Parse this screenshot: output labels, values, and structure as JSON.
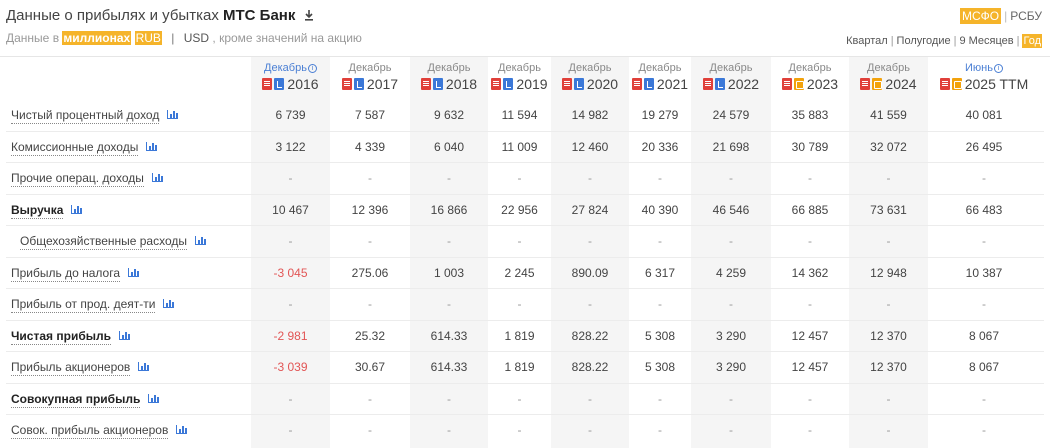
{
  "header": {
    "title_prefix": "Данные о прибылях и убытках",
    "bank_name": "МТС Банк",
    "download_icon": "download-icon"
  },
  "units": {
    "prefix": "Данные в",
    "scale": "миллионах",
    "currency_rub": "RUB",
    "currency_usd": "USD",
    "suffix": ", кроме значений на акцию"
  },
  "standards": {
    "ifrs": "МСФО",
    "ras": "РСБУ",
    "selected": "МСФО"
  },
  "periods": {
    "quarter": "Квартал",
    "half": "Полугодие",
    "nine_months": "9 Месяцев",
    "year": "Год",
    "selected": "Год"
  },
  "columns": [
    {
      "month": "Декабрь",
      "year": "2016",
      "info": true,
      "report": "xls"
    },
    {
      "month": "Декабрь",
      "year": "2017",
      "info": false,
      "report": "xls"
    },
    {
      "month": "Декабрь",
      "year": "2018",
      "info": false,
      "report": "xls"
    },
    {
      "month": "Декабрь",
      "year": "2019",
      "info": false,
      "report": "xls"
    },
    {
      "month": "Декабрь",
      "year": "2020",
      "info": false,
      "report": "xls"
    },
    {
      "month": "Декабрь",
      "year": "2021",
      "info": false,
      "report": "xls"
    },
    {
      "month": "Декабрь",
      "year": "2022",
      "info": false,
      "report": "xls"
    },
    {
      "month": "Декабрь",
      "year": "2023",
      "info": false,
      "report": "doc"
    },
    {
      "month": "Декабрь",
      "year": "2024",
      "info": false,
      "report": "doc"
    },
    {
      "month": "Июнь",
      "year": "2025 TTM",
      "info": true,
      "report": "doc"
    }
  ],
  "rows": [
    {
      "label": "Чистый процентный доход",
      "bold": false,
      "indent": false,
      "values": [
        "6 739",
        "7 587",
        "9 632",
        "11 594",
        "14 982",
        "19 279",
        "24 579",
        "35 883",
        "41 559",
        "40 081"
      ]
    },
    {
      "label": "Комиссионные доходы",
      "bold": false,
      "indent": false,
      "values": [
        "3 122",
        "4 339",
        "6 040",
        "11 009",
        "12 460",
        "20 336",
        "21 698",
        "30 789",
        "32 072",
        "26 495"
      ]
    },
    {
      "label": "Прочие операц. доходы",
      "bold": false,
      "indent": false,
      "values": [
        "-",
        "-",
        "-",
        "-",
        "-",
        "-",
        "-",
        "-",
        "-",
        "-"
      ]
    },
    {
      "label": "Выручка",
      "bold": true,
      "indent": false,
      "values": [
        "10 467",
        "12 396",
        "16 866",
        "22 956",
        "27 824",
        "40 390",
        "46 546",
        "66 885",
        "73 631",
        "66 483"
      ]
    },
    {
      "label": "Общехозяйственные расходы",
      "bold": false,
      "indent": true,
      "values": [
        "-",
        "-",
        "-",
        "-",
        "-",
        "-",
        "-",
        "-",
        "-",
        "-"
      ]
    },
    {
      "label": "Прибыль до налога",
      "bold": false,
      "indent": false,
      "values": [
        "-3 045",
        "275.06",
        "1 003",
        "2 245",
        "890.09",
        "6 317",
        "4 259",
        "14 362",
        "12 948",
        "10 387"
      ]
    },
    {
      "label": "Прибыль от прод. деят-ти",
      "bold": false,
      "indent": false,
      "values": [
        "-",
        "-",
        "-",
        "-",
        "-",
        "-",
        "-",
        "-",
        "-",
        "-"
      ]
    },
    {
      "label": "Чистая прибыль",
      "bold": true,
      "indent": false,
      "values": [
        "-2 981",
        "25.32",
        "614.33",
        "1 819",
        "828.22",
        "5 308",
        "3 290",
        "12 457",
        "12 370",
        "8 067"
      ]
    },
    {
      "label": "Прибыль акционеров",
      "bold": false,
      "indent": false,
      "values": [
        "-3 039",
        "30.67",
        "614.33",
        "1 819",
        "828.22",
        "5 308",
        "3 290",
        "12 457",
        "12 370",
        "8 067"
      ]
    },
    {
      "label": "Совокупная прибыль",
      "bold": true,
      "indent": false,
      "values": [
        "-",
        "-",
        "-",
        "-",
        "-",
        "-",
        "-",
        "-",
        "-",
        "-"
      ]
    },
    {
      "label": "Совок. прибыль акционеров",
      "bold": false,
      "indent": false,
      "values": [
        "-",
        "-",
        "-",
        "-",
        "-",
        "-",
        "-",
        "-",
        "-",
        "-"
      ]
    }
  ],
  "colors": {
    "accent": "#f5b42a",
    "negative": "#e25555",
    "link_blue": "#3b78d8",
    "shade": "#f5f5f5"
  }
}
